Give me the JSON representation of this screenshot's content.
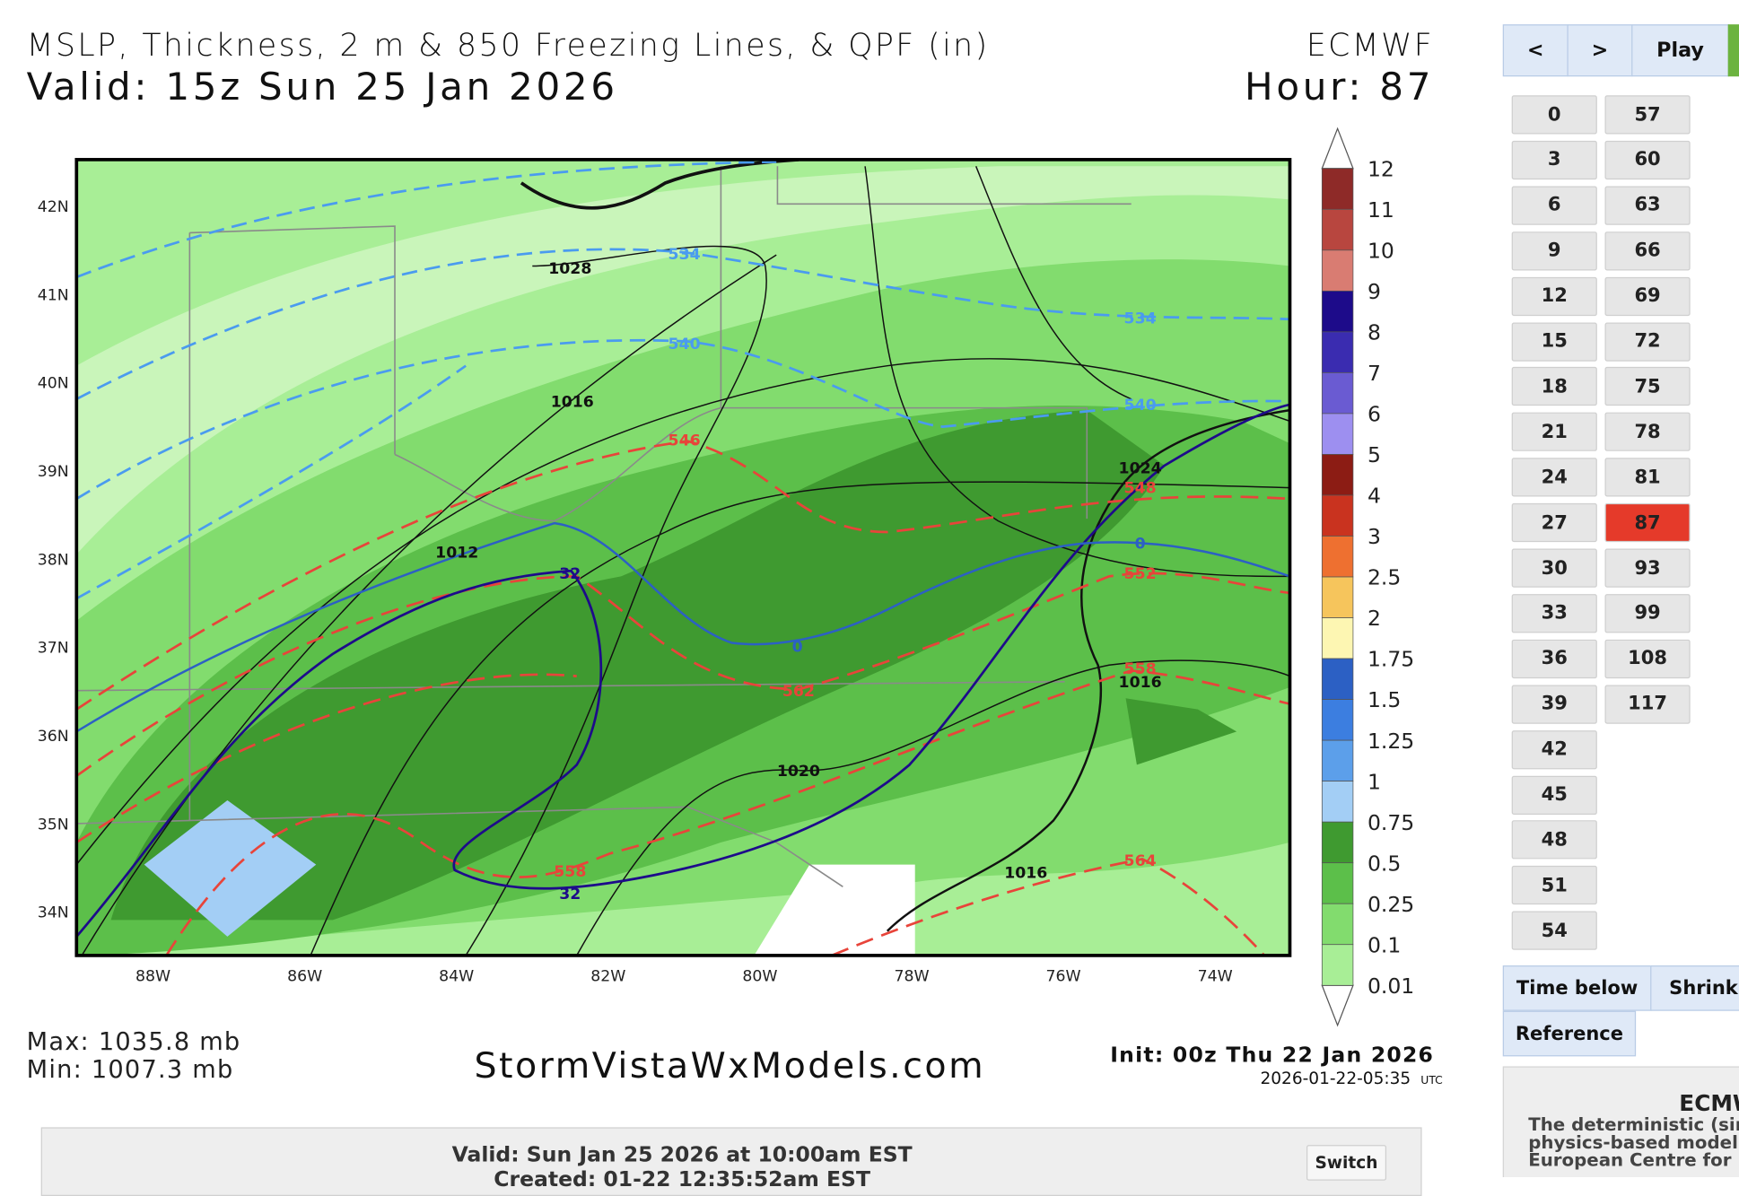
{
  "map": {
    "title": "MSLP, Thickness, 2 m & 850 Freezing Lines, & QPF (in)",
    "model": "ECMWF",
    "valid": "Valid: 15z Sun 25 Jan 2026",
    "hour_label": "Hour:",
    "hour": "87",
    "lat_labels": [
      "42N",
      "41N",
      "40N",
      "39N",
      "38N",
      "37N",
      "36N",
      "35N",
      "34N"
    ],
    "lon_labels": [
      "88W",
      "86W",
      "84W",
      "82W",
      "80W",
      "78W",
      "76W",
      "74W"
    ],
    "colorbar": {
      "levels": [
        12,
        11,
        10,
        9,
        8,
        7,
        6,
        5,
        4,
        3,
        2.5,
        2,
        1.75,
        1.5,
        1.25,
        1,
        0.75,
        0.5,
        0.25,
        0.1,
        0.01
      ],
      "colors": [
        "#8e2a28",
        "#b8463f",
        "#d97c72",
        "#1d0b8a",
        "#3a2cb0",
        "#6a5bd2",
        "#9d8ff0",
        "#8c1c14",
        "#c9331f",
        "#ee7030",
        "#f6c55c",
        "#fdf6b2",
        "#2c60c4",
        "#3c7ee0",
        "#5c9fea",
        "#a3cef5",
        "#3f9a30",
        "#5cbf4a",
        "#82dc6e",
        "#a8ee96"
      ]
    },
    "contour_labels": [
      "1028",
      "1016",
      "1012",
      "1020",
      "1024",
      "1016",
      "1016",
      "534",
      "540",
      "534",
      "540",
      "546",
      "548",
      "552",
      "562",
      "558",
      "558",
      "564",
      "32",
      "32",
      "0",
      "0"
    ],
    "max": "Max: 1035.8 mb",
    "min": "Min: 1007.3 mb",
    "site": "StormVistaWxModels.com",
    "init": "Init: 00z Thu 22 Jan 2026",
    "created": "2026-01-22-05:35",
    "utc": "UTC"
  },
  "controls": {
    "prev": "<",
    "next": ">",
    "play": "Play",
    "hour_columns": [
      [
        "0",
        "3",
        "6",
        "9",
        "12",
        "15",
        "18",
        "21",
        "24",
        "27",
        "30",
        "33",
        "36",
        "39",
        "42",
        "45",
        "48",
        "51",
        "54"
      ],
      [
        "57",
        "60",
        "63",
        "66",
        "69",
        "72",
        "75",
        "78",
        "81",
        "87",
        "93",
        "99",
        "108",
        "117"
      ]
    ],
    "time_below": "Time below",
    "shrink": "Shrink T",
    "reference": "Reference"
  },
  "info": {
    "heading": "ECMW",
    "lines": [
      "The deterministic (sir",
      "physics-based model",
      "European Centre for N"
    ]
  },
  "footer": {
    "valid": "Valid: Sun Jan 25 2026 at 10:00am EST",
    "created": "Created: 01-22 12:35:52am EST",
    "switch": "Switch"
  }
}
